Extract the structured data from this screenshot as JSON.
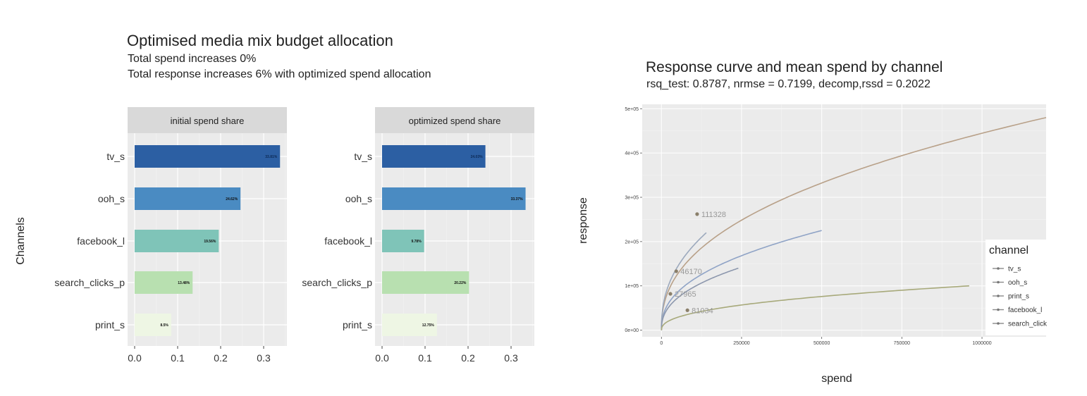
{
  "left": {
    "title": "Optimised media mix budget allocation",
    "subtitle1": "Total spend increases 0%",
    "subtitle2": "Total response increases 6% with optimized spend allocation",
    "ylabel": "Channels"
  },
  "right": {
    "title": "Response curve and mean spend by channel",
    "subtitle": "rsq_test: 0.8787, nrmse = 0.7199, decomp,rssd = 0.2022"
  },
  "colors": {
    "panel_bg": "#ebebeb",
    "strip_bg": "#d9d9d9",
    "grid": "#ffffff",
    "bar_tv": "#2c5fa3",
    "bar_ooh": "#4a8bc2",
    "bar_facebook": "#7fc4b8",
    "bar_search": "#b8e0b0",
    "bar_print": "#eef6e4",
    "curve_tv": "#b8a088",
    "curve_ooh": "#8fa3c6",
    "curve_print": "#9ca9bd",
    "curve_facebook": "#8c97ad",
    "curve_search": "#a7a97a"
  },
  "chart_data": [
    {
      "type": "bar",
      "facet": "initial spend share",
      "categories": [
        "tv_s",
        "ooh_s",
        "facebook_l",
        "search_clicks_p",
        "print_s"
      ],
      "values": [
        0.3381,
        0.2462,
        0.1956,
        0.1348,
        0.085
      ],
      "data_labels": [
        "33.81%",
        "24.62%",
        "19.56%",
        "13.48%",
        "8.5%"
      ],
      "xticks": [
        "0.0",
        "0.1",
        "0.2",
        "0.3"
      ],
      "xlim": [
        0,
        0.35
      ]
    },
    {
      "type": "bar",
      "facet": "optimized spend share",
      "categories": [
        "tv_s",
        "ooh_s",
        "facebook_l",
        "search_clicks_p",
        "print_s"
      ],
      "values": [
        0.2403,
        0.3337,
        0.0978,
        0.2022,
        0.1275
      ],
      "data_labels": [
        "24.03%",
        "33.37%",
        "9.78%",
        "20.22%",
        "12.75%"
      ],
      "xticks": [
        "0.0",
        "0.1",
        "0.2",
        "0.3"
      ],
      "xlim": [
        0,
        0.35
      ]
    },
    {
      "type": "line",
      "xlabel": "spend",
      "ylabel": "response",
      "xlim": [
        -60000,
        1200000
      ],
      "ylim": [
        -15000,
        510000
      ],
      "xticks": [
        0,
        250000,
        500000,
        750000,
        1000000
      ],
      "xtick_labels": [
        "0",
        "250000",
        "500000",
        "750000",
        "1000000"
      ],
      "yticks": [
        0,
        100000,
        200000,
        300000,
        400000,
        500000
      ],
      "ytick_labels": [
        "0e+00",
        "1e+05",
        "2e+05",
        "3e+05",
        "4e+05",
        "5e+05"
      ],
      "legend_title": "channel",
      "legend_position": "right",
      "series": [
        {
          "name": "tv_s",
          "x_max": 1200000,
          "y_max": 480000
        },
        {
          "name": "ooh_s",
          "x_max": 500000,
          "y_max": 225000
        },
        {
          "name": "print_s",
          "x_max": 140000,
          "y_max": 220000
        },
        {
          "name": "facebook_l",
          "x_max": 240000,
          "y_max": 140000
        },
        {
          "name": "search_clicks_p",
          "x_max": 960000,
          "y_max": 100000
        }
      ],
      "mean_points": [
        {
          "x": 111328,
          "y": 262000,
          "label": "111328"
        },
        {
          "x": 46170,
          "y": 133000,
          "label": "46170"
        },
        {
          "x": 27965,
          "y": 82000,
          "label": "27965"
        },
        {
          "x": 81034,
          "y": 45000,
          "label": "81034"
        }
      ],
      "legend_entries": [
        "tv_s",
        "ooh_s",
        "print_s",
        "facebook_l",
        "search_click"
      ]
    }
  ]
}
